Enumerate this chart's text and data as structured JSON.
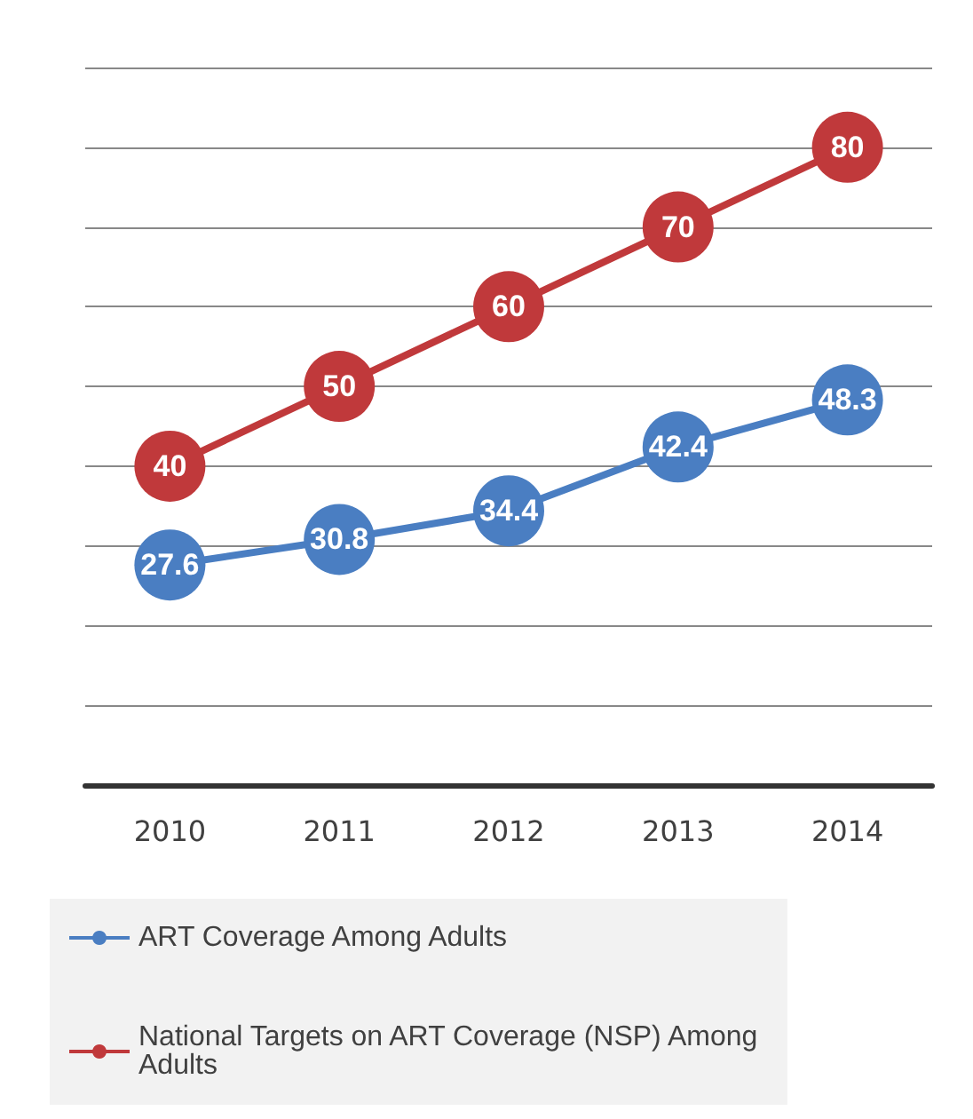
{
  "chart_data": {
    "type": "line",
    "categories": [
      "2010",
      "2011",
      "2012",
      "2013",
      "2014"
    ],
    "series": [
      {
        "name": "ART Coverage Among Adults",
        "color": "#4a7ec2",
        "values": [
          27.6,
          30.8,
          34.4,
          42.4,
          48.3
        ]
      },
      {
        "name": "National Targets on ART Coverage (NSP) Among Adults",
        "color": "#c0393b",
        "values": [
          40,
          50,
          60,
          70,
          80
        ]
      }
    ],
    "ylim": [
      0,
      90
    ],
    "yticks": [
      {
        "value": 0,
        "label": null
      },
      {
        "value": 10,
        "label": null
      },
      {
        "value": 20,
        "label": null
      },
      {
        "value": 30,
        "label": null
      },
      {
        "value": 40,
        "label": null
      },
      {
        "value": 50,
        "label": null
      },
      {
        "value": 60,
        "label": null
      },
      {
        "value": 70,
        "label": null
      },
      {
        "value": 80,
        "label": null
      },
      {
        "value": 90,
        "label": null
      }
    ],
    "tick_labels": "x",
    "grid": "y",
    "legend": "bottom",
    "marker": "circle",
    "data_labels": true
  }
}
